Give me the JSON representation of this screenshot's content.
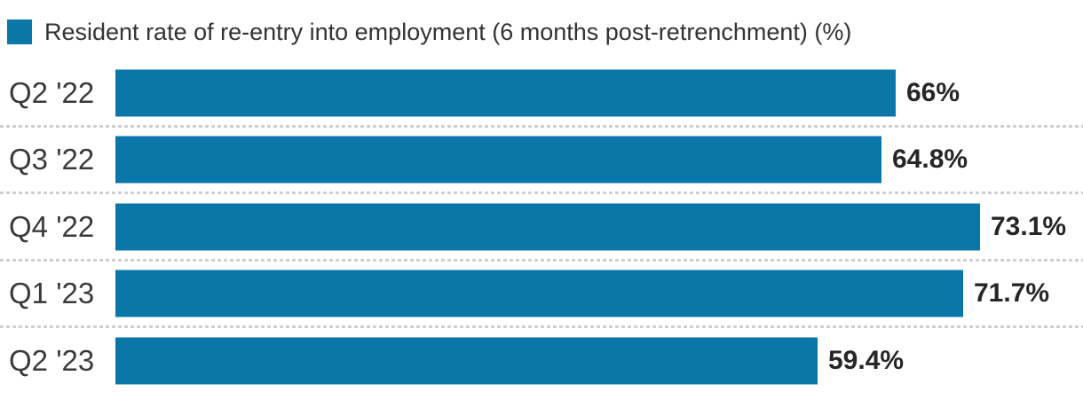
{
  "legend": {
    "label": "Resident rate of re-entry into employment (6 months post-retrenchment) (%)"
  },
  "colors": {
    "bar": "#0b76a8",
    "legend_text": "#333333",
    "category_text": "#3a3a3a",
    "value_text": "#262626",
    "separator": "#cfcfcf",
    "background": "#ffffff"
  },
  "chart_data": {
    "type": "bar",
    "orientation": "horizontal",
    "title": "Resident rate of re-entry into employment (6 months post-retrenchment) (%)",
    "categories": [
      "Q2 '22",
      "Q3 '22",
      "Q4 '22",
      "Q1 '23",
      "Q2 '23"
    ],
    "values": [
      66,
      64.8,
      73.1,
      71.7,
      59.4
    ],
    "value_labels": [
      "66%",
      "64.8%",
      "73.1%",
      "71.7%",
      "59.4%"
    ],
    "xlabel": "",
    "ylabel": "",
    "xlim": [
      0,
      73.1
    ],
    "grid": "dotted-row-separators",
    "legend_position": "top-left",
    "bar_color": "#0b76a8"
  }
}
